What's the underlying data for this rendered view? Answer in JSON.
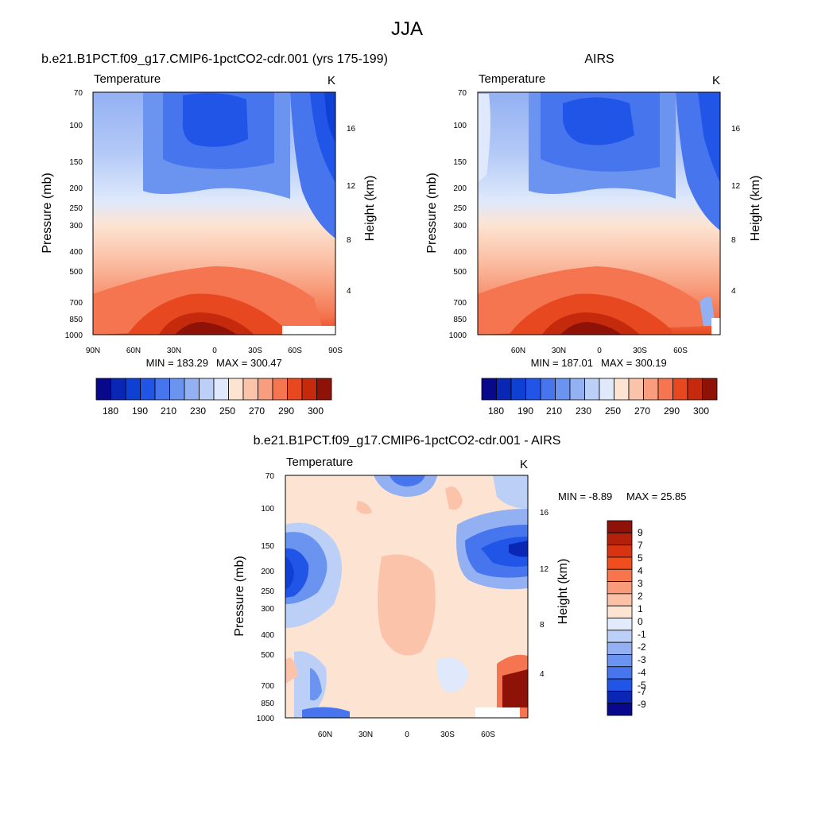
{
  "figure": {
    "title": "JJA"
  },
  "chart_data": [
    {
      "type": "heatmap",
      "title": "b.e21.B1PCT.f09_g17.CMIP6-1pctCO2-cdr.001 (yrs 175-199)",
      "left_label": "Temperature",
      "units": "K",
      "xlabel": "",
      "ylabel": "Pressure (mb)",
      "right_ylabel": "Height (km)",
      "x_ticks": [
        "90N",
        "60N",
        "30N",
        "0",
        "30S",
        "60S",
        "90S"
      ],
      "y_ticks": [
        "70",
        "100",
        "150",
        "200",
        "250",
        "300",
        "400",
        "500",
        "700",
        "850",
        "1000"
      ],
      "y_right_ticks": [
        "4",
        "8",
        "12",
        "16"
      ],
      "min_text": "MIN = 183.29",
      "max_text": "MAX = 300.47",
      "colorbar_labels": [
        "180",
        "190",
        "210",
        "230",
        "250",
        "270",
        "290",
        "300"
      ],
      "palette": [
        "#08088c",
        "#0a26b4",
        "#0f40d4",
        "#2155e8",
        "#4675ee",
        "#6b93f0",
        "#93b0f3",
        "#bcd0f7",
        "#dfe9fb",
        "#fde3d2",
        "#fbc3a9",
        "#f89e7e",
        "#f47550",
        "#e8481f",
        "#c52a0d",
        "#8e1207"
      ]
    },
    {
      "type": "heatmap",
      "title": "AIRS",
      "left_label": "Temperature",
      "units": "K",
      "xlabel": "",
      "ylabel": "Pressure (mb)",
      "right_ylabel": "Height (km)",
      "x_ticks": [
        "60N",
        "30N",
        "0",
        "30S",
        "60S"
      ],
      "y_ticks": [
        "70",
        "100",
        "150",
        "200",
        "250",
        "300",
        "400",
        "500",
        "700",
        "850",
        "1000"
      ],
      "y_right_ticks": [
        "4",
        "8",
        "12",
        "16"
      ],
      "min_text": "MIN = 187.01",
      "max_text": "MAX = 300.19",
      "colorbar_labels": [
        "180",
        "190",
        "210",
        "230",
        "250",
        "270",
        "290",
        "300"
      ]
    },
    {
      "type": "heatmap",
      "title": "b.e21.B1PCT.f09_g17.CMIP6-1pctCO2-cdr.001 - AIRS",
      "left_label": "Temperature",
      "units": "K",
      "xlabel": "",
      "ylabel": "Pressure (mb)",
      "right_ylabel": "Height (km)",
      "x_ticks": [
        "60N",
        "30N",
        "0",
        "30S",
        "60S"
      ],
      "y_ticks": [
        "70",
        "100",
        "150",
        "200",
        "250",
        "300",
        "400",
        "500",
        "700",
        "850",
        "1000"
      ],
      "y_right_ticks": [
        "4",
        "8",
        "12",
        "16"
      ],
      "min_text": "MIN =  -8.89",
      "max_text": "MAX =  25.85",
      "colorbar_labels": [
        "9",
        "7",
        "5",
        "4",
        "3",
        "2",
        "1",
        "0",
        "-1",
        "-2",
        "-3",
        "-4",
        "-5",
        "-7",
        "-9"
      ],
      "palette": [
        "#8e1207",
        "#b3200b",
        "#d83412",
        "#f04e1f",
        "#f7754d",
        "#f99b7a",
        "#fbc0a6",
        "#fde3d2",
        "#e2ebfb",
        "#bcd0f7",
        "#93b0f3",
        "#6b93f0",
        "#4675ee",
        "#2155e8",
        "#0a26b4",
        "#08088c"
      ]
    }
  ]
}
